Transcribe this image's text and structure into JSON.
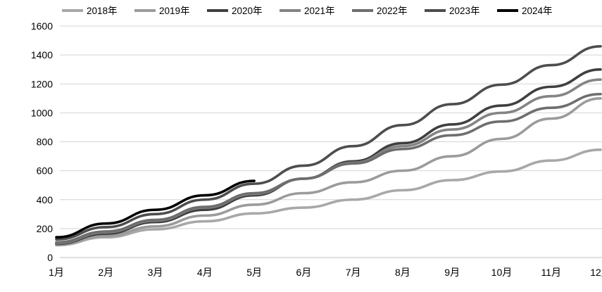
{
  "chart_data": {
    "type": "line",
    "title": "",
    "xlabel": "",
    "ylabel": "",
    "x": [
      "1月",
      "2月",
      "3月",
      "4月",
      "5月",
      "6月",
      "7月",
      "8月",
      "9月",
      "10月",
      "11月",
      "12月"
    ],
    "ylim": [
      0,
      1600
    ],
    "ytick_step": 200,
    "yticks": [
      0,
      200,
      400,
      600,
      800,
      1000,
      1200,
      1400,
      1600
    ],
    "grid": "horizontal",
    "legend_position": "top",
    "series": [
      {
        "name": "2018年",
        "color": "#a8a8a8",
        "values": [
          85,
          140,
          195,
          250,
          305,
          345,
          400,
          465,
          535,
          595,
          670,
          745
        ]
      },
      {
        "name": "2019年",
        "color": "#9b9b9b",
        "values": [
          90,
          150,
          215,
          290,
          365,
          445,
          520,
          600,
          700,
          820,
          960,
          1100
        ]
      },
      {
        "name": "2020年",
        "color": "#3f3f3f",
        "values": [
          95,
          165,
          245,
          330,
          430,
          545,
          665,
          790,
          920,
          1050,
          1180,
          1300
        ]
      },
      {
        "name": "2021年",
        "color": "#848484",
        "values": [
          100,
          175,
          255,
          345,
          440,
          545,
          655,
          770,
          885,
          1000,
          1115,
          1230
        ]
      },
      {
        "name": "2022年",
        "color": "#6e6e6e",
        "values": [
          105,
          180,
          260,
          350,
          445,
          545,
          650,
          750,
          845,
          940,
          1035,
          1130
        ]
      },
      {
        "name": "2023年",
        "color": "#4d4d4d",
        "values": [
          125,
          210,
          300,
          400,
          510,
          635,
          770,
          915,
          1060,
          1195,
          1330,
          1460
        ]
      },
      {
        "name": "2024年",
        "color": "#000000",
        "values": [
          140,
          235,
          330,
          430,
          530
        ]
      }
    ]
  },
  "colors": {
    "background": "#ffffff",
    "gridline": "#d4d4d4",
    "axis_line": "#bfbfbf",
    "tick_text": "#000000"
  },
  "layout_labels": {
    "legend_name": "chart-legend",
    "plot_name": "line-chart"
  }
}
